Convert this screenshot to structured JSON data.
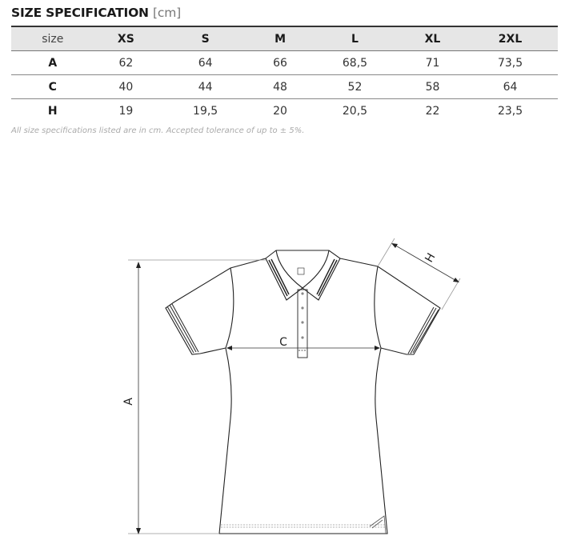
{
  "title": {
    "main": "SIZE SPECIFICATION",
    "unit": "[cm]"
  },
  "table": {
    "headers": [
      "size",
      "XS",
      "S",
      "M",
      "L",
      "XL",
      "2XL"
    ],
    "rows": [
      {
        "label": "A",
        "values": [
          "62",
          "64",
          "66",
          "68,5",
          "71",
          "73,5"
        ]
      },
      {
        "label": "C",
        "values": [
          "40",
          "44",
          "48",
          "52",
          "58",
          "64"
        ]
      },
      {
        "label": "H",
        "values": [
          "19",
          "19,5",
          "20",
          "20,5",
          "22",
          "23,5"
        ]
      }
    ]
  },
  "note": "All size specifications listed are in cm. Accepted tolerance of up to ± 5%.",
  "diagram": {
    "label_a": "A",
    "label_c": "C",
    "label_h": "H"
  }
}
